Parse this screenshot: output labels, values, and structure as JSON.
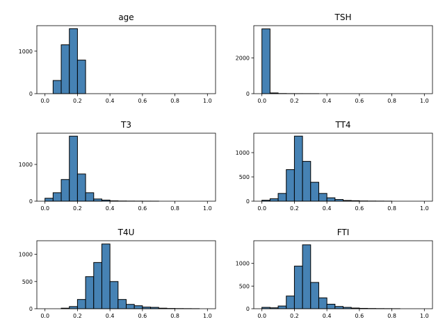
{
  "figure": {
    "bar_color": "#4682b4",
    "edge_color": "#000000",
    "bins": 20,
    "bin_range": [
      0,
      1
    ]
  },
  "chart_data": [
    {
      "type": "bar",
      "title": "age",
      "xlim": [
        0,
        1
      ],
      "ylim": [
        0,
        1600
      ],
      "x_ticks": [
        "0.0",
        "0.2",
        "0.4",
        "0.6",
        "0.8",
        "1.0"
      ],
      "y_ticks": [
        {
          "value": 0,
          "label": "0"
        },
        {
          "value": 1000,
          "label": "1000"
        }
      ],
      "values": [
        0,
        310,
        1150,
        1530,
        790,
        0,
        0,
        0,
        0,
        0,
        0,
        0,
        0,
        0,
        0,
        0,
        0,
        0,
        0,
        0
      ]
    },
    {
      "type": "bar",
      "title": "TSH",
      "xlim": [
        0,
        1
      ],
      "ylim": [
        0,
        3800
      ],
      "x_ticks": [
        "0.0",
        "0.2",
        "0.4",
        "0.6",
        "0.8",
        "1.0"
      ],
      "y_ticks": [
        {
          "value": 0,
          "label": "0"
        },
        {
          "value": 2000,
          "label": "2000"
        }
      ],
      "values": [
        3620,
        40,
        8,
        3,
        2,
        1,
        1,
        0,
        0,
        0,
        0,
        0,
        0,
        0,
        0,
        0,
        0,
        0,
        0,
        0
      ]
    },
    {
      "type": "bar",
      "title": "T3",
      "xlim": [
        0,
        1
      ],
      "ylim": [
        0,
        1850
      ],
      "x_ticks": [
        "0.0",
        "0.2",
        "0.4",
        "0.6",
        "0.8",
        "1.0"
      ],
      "y_ticks": [
        {
          "value": 0,
          "label": "0"
        },
        {
          "value": 1000,
          "label": "1000"
        }
      ],
      "values": [
        80,
        230,
        590,
        1770,
        740,
        230,
        60,
        30,
        10,
        5,
        3,
        2,
        1,
        1,
        0,
        0,
        0,
        0,
        0,
        0
      ]
    },
    {
      "type": "bar",
      "title": "TT4",
      "xlim": [
        0,
        1
      ],
      "ylim": [
        0,
        1400
      ],
      "x_ticks": [
        "0.0",
        "0.2",
        "0.4",
        "0.6",
        "0.8",
        "1.0"
      ],
      "y_ticks": [
        {
          "value": 0,
          "label": "0"
        },
        {
          "value": 500,
          "label": "500"
        },
        {
          "value": 1000,
          "label": "1000"
        }
      ],
      "values": [
        20,
        50,
        160,
        650,
        1340,
        820,
        390,
        160,
        70,
        35,
        15,
        10,
        5,
        3,
        2,
        1,
        0,
        0,
        0,
        0
      ]
    },
    {
      "type": "bar",
      "title": "T4U",
      "xlim": [
        0,
        1
      ],
      "ylim": [
        0,
        1250
      ],
      "x_ticks": [
        "0.0",
        "0.2",
        "0.4",
        "0.6",
        "0.8",
        "1.0"
      ],
      "y_ticks": [
        {
          "value": 0,
          "label": "0"
        },
        {
          "value": 500,
          "label": "500"
        },
        {
          "value": 1000,
          "label": "1000"
        }
      ],
      "values": [
        0,
        0,
        10,
        40,
        170,
        590,
        850,
        1190,
        500,
        170,
        80,
        55,
        30,
        25,
        10,
        5,
        3,
        2,
        1,
        0
      ]
    },
    {
      "type": "bar",
      "title": "FTI",
      "xlim": [
        0,
        1
      ],
      "ylim": [
        0,
        1500
      ],
      "x_ticks": [
        "0.0",
        "0.2",
        "0.4",
        "0.6",
        "0.8",
        "1.0"
      ],
      "y_ticks": [
        {
          "value": 0,
          "label": "0"
        },
        {
          "value": 500,
          "label": "500"
        },
        {
          "value": 1000,
          "label": "1000"
        }
      ],
      "values": [
        30,
        20,
        60,
        280,
        940,
        1410,
        580,
        240,
        100,
        50,
        30,
        15,
        8,
        5,
        3,
        2,
        1,
        0,
        0,
        0
      ]
    }
  ]
}
